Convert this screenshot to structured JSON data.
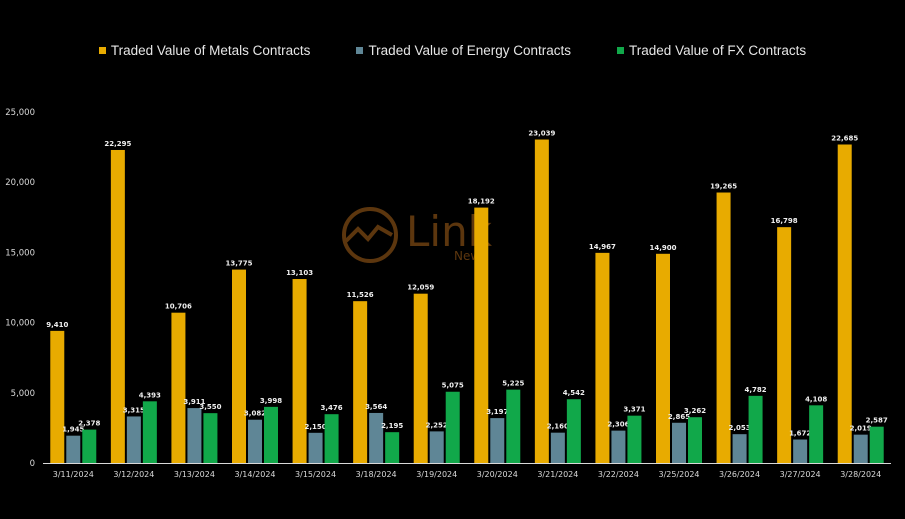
{
  "legend": {
    "metals": "Traded Value of Metals Contracts",
    "energy": "Traded Value of Energy Contracts",
    "fx": "Traded Value of FX Contracts"
  },
  "watermark": {
    "brand": "Link",
    "sub": "News"
  },
  "colors": {
    "metals": "#e8ab00",
    "energy": "#5f8696",
    "fx": "#11a84a",
    "background": "#000000",
    "text": "#e6e6e6"
  },
  "chart_data": {
    "type": "bar",
    "categories": [
      "3/11/2024",
      "3/12/2024",
      "3/13/2024",
      "3/14/2024",
      "3/15/2024",
      "3/18/2024",
      "3/19/2024",
      "3/20/2024",
      "3/21/2024",
      "3/22/2024",
      "3/25/2024",
      "3/26/2024",
      "3/27/2024",
      "3/28/2024"
    ],
    "series": [
      {
        "name": "Traded Value of Metals Contracts",
        "values": [
          9410,
          22295,
          10706,
          13775,
          13103,
          11526,
          12059,
          18192,
          23039,
          14967,
          14900,
          19265,
          16798,
          22685
        ],
        "labels": [
          "9,410",
          "22,295",
          "10,706",
          "13,775",
          "13,103",
          "11,526",
          "12,059",
          "18,192",
          "23,039",
          "14,967",
          "14,900",
          "19,265",
          "16,798",
          "22,685"
        ]
      },
      {
        "name": "Traded Value of Energy Contracts",
        "values": [
          1945,
          3315,
          3911,
          3082,
          2150,
          3564,
          2252,
          3197,
          2160,
          2306,
          2865,
          2053,
          1672,
          2019
        ],
        "labels": [
          "1,945",
          "3,315",
          "3,911",
          "3,082",
          "2,150",
          "3,564",
          "2,252",
          "3,197",
          "2,160",
          "2,306",
          "2,865",
          "2,053",
          "1,672",
          "2,019"
        ]
      },
      {
        "name": "Traded Value of FX Contracts",
        "values": [
          2378,
          4393,
          3550,
          3998,
          3476,
          2195,
          5075,
          5225,
          4542,
          3371,
          3262,
          4782,
          4108,
          2587
        ],
        "labels": [
          "2,378",
          "4,393",
          "3,550",
          "3,998",
          "3,476",
          "2,195",
          "5,075",
          "5,225",
          "4,542",
          "3,371",
          "3,262",
          "4,782",
          "4,108",
          "2,587"
        ]
      }
    ],
    "yticks": [
      "0",
      "5,000",
      "10,000",
      "15,000",
      "20,000",
      "25,000"
    ],
    "ylim": [
      0,
      25000
    ],
    "grid": false,
    "legend_position": "top-center"
  }
}
